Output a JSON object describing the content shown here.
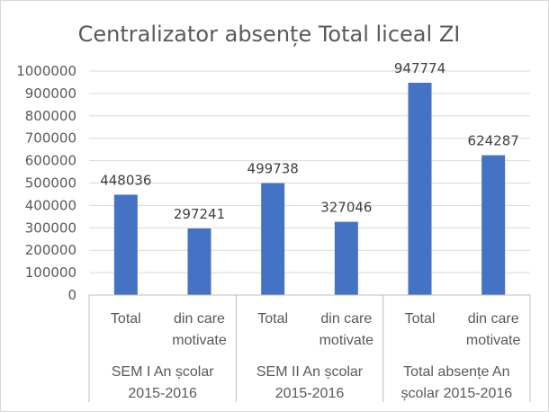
{
  "chart_data": {
    "type": "bar",
    "title": "Centralizator absențe Total liceal ZI",
    "ylim": [
      0,
      1000000
    ],
    "yticks": [
      "0",
      "100000",
      "200000",
      "300000",
      "400000",
      "500000",
      "600000",
      "700000",
      "800000",
      "900000",
      "1000000"
    ],
    "ytick_values": [
      0,
      100000,
      200000,
      300000,
      400000,
      500000,
      600000,
      700000,
      800000,
      900000,
      1000000
    ],
    "grid": true,
    "legend": "none",
    "bar_color": "#4472c4",
    "groups": [
      {
        "lines": [
          "SEM I An școlar",
          "2015-2016"
        ]
      },
      {
        "lines": [
          "SEM II An școlar",
          "2015-2016"
        ]
      },
      {
        "lines": [
          "Total absențe An",
          "școlar 2015-2016"
        ]
      }
    ],
    "categories": [
      {
        "lines": [
          "Total"
        ],
        "group": 0
      },
      {
        "lines": [
          "din care",
          "motivate"
        ],
        "group": 0
      },
      {
        "lines": [
          "Total"
        ],
        "group": 1
      },
      {
        "lines": [
          "din care",
          "motivate"
        ],
        "group": 1
      },
      {
        "lines": [
          "Total"
        ],
        "group": 2
      },
      {
        "lines": [
          "din care",
          "motivate"
        ],
        "group": 2
      }
    ],
    "values": [
      448036,
      297241,
      499738,
      327046,
      947774,
      624287
    ],
    "data_labels": [
      "448036",
      "297241",
      "499738",
      "327046",
      "947774",
      "624287"
    ]
  }
}
